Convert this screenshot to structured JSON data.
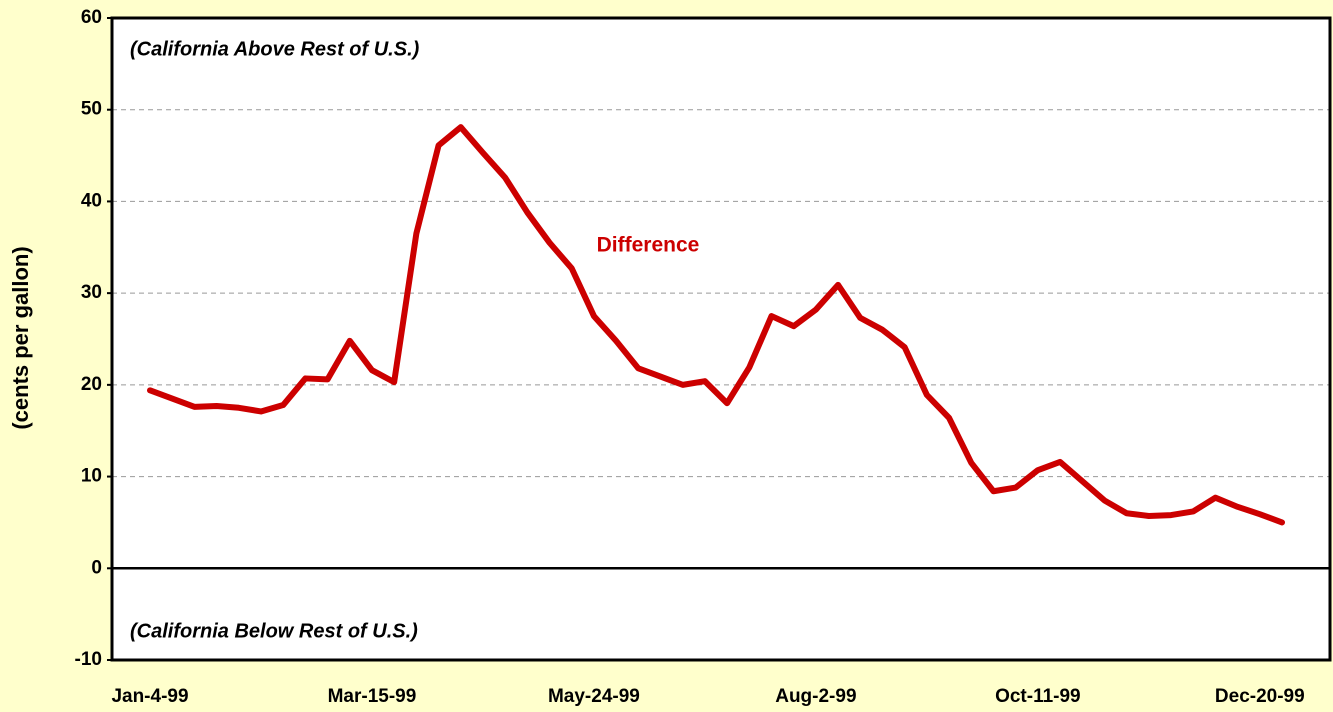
{
  "chart_data": {
    "type": "line",
    "ylabel": "(cents per gallon)",
    "annotations": [
      "(California Above Rest of U.S.)",
      "(California Below Rest of U.S.)"
    ],
    "categories": [
      "Jan-4-99",
      null,
      null,
      null,
      null,
      null,
      null,
      null,
      null,
      null,
      "Mar-15-99",
      null,
      null,
      null,
      null,
      null,
      null,
      null,
      null,
      null,
      "May-24-99",
      null,
      null,
      null,
      null,
      null,
      null,
      null,
      null,
      null,
      "Aug-2-99",
      null,
      null,
      null,
      null,
      null,
      null,
      null,
      null,
      null,
      "Oct-11-99",
      null,
      null,
      null,
      null,
      null,
      null,
      null,
      null,
      null,
      "Dec-20-99",
      null
    ],
    "series": [
      {
        "name": "Difference",
        "color": "#cc0000",
        "values": [
          19.4,
          18.5,
          17.6,
          17.7,
          17.5,
          17.1,
          17.8,
          20.7,
          20.6,
          24.8,
          21.6,
          20.3,
          36.5,
          46.1,
          48.1,
          45.3,
          42.6,
          38.8,
          35.5,
          32.7,
          27.5,
          24.8,
          21.8,
          20.9,
          20.0,
          20.4,
          18.0,
          21.9,
          27.5,
          26.4,
          28.2,
          30.9,
          27.3,
          26.0,
          24.1,
          18.9,
          16.4,
          11.5,
          8.4,
          8.8,
          10.7,
          11.6,
          9.5,
          7.4,
          6.0,
          5.7,
          5.8,
          6.2,
          7.7,
          6.7,
          5.9,
          5.0
        ]
      }
    ],
    "ylim": [
      -10,
      60
    ],
    "yticks": [
      -10,
      0,
      10,
      20,
      30,
      40,
      50,
      60
    ],
    "grid": true
  }
}
